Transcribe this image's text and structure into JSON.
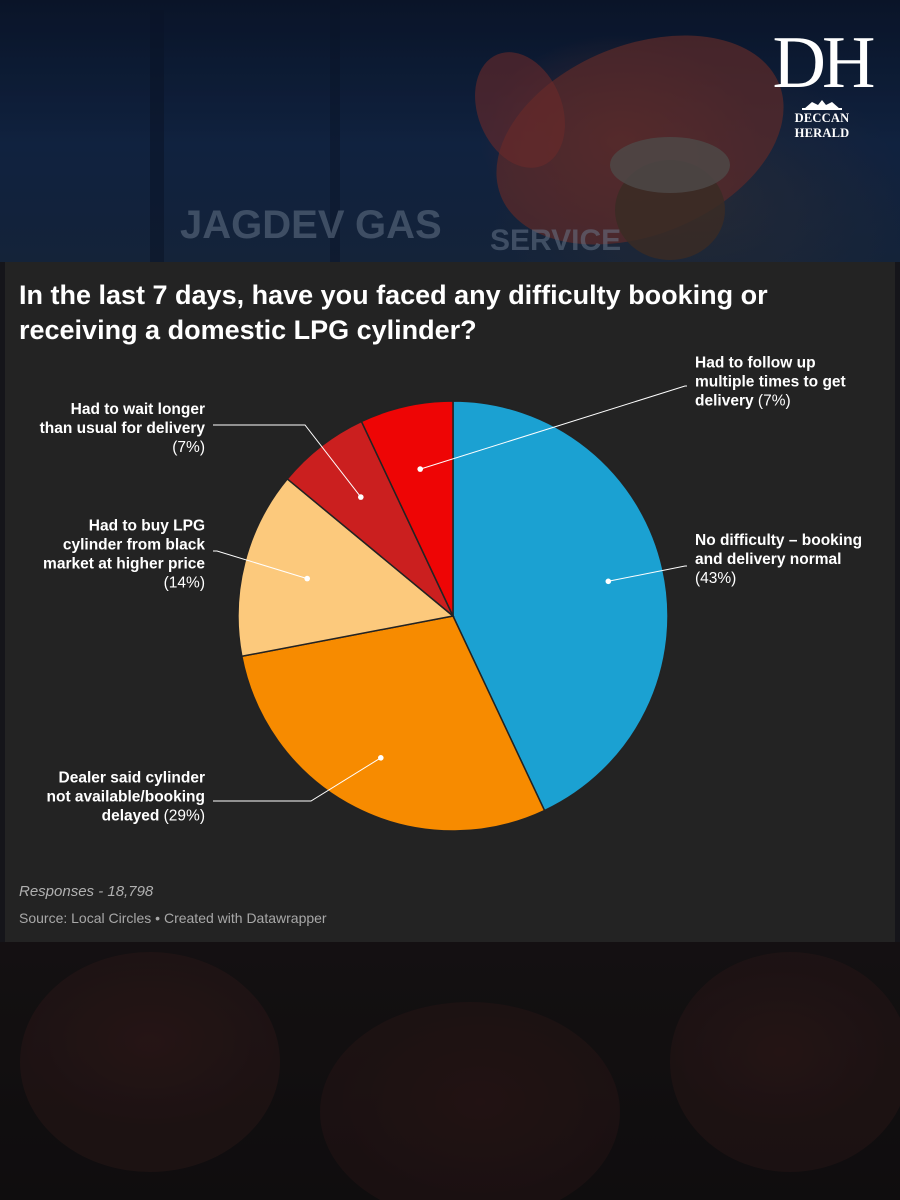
{
  "logo": {
    "mark": "DH",
    "name": "DECCAN HERALD",
    "background_text": [
      "JAGDEV",
      "GAS",
      "SERVICE"
    ]
  },
  "chart_data": {
    "type": "pie",
    "title": "In the last 7 days, have you faced any difficulty booking or receiving a domestic LPG cylinder?",
    "start_angle_deg": 0,
    "direction": "clockwise",
    "slices": [
      {
        "label_lines": [
          "No difficulty – booking",
          "and delivery normal"
        ],
        "pct_text": "(43%)",
        "value": 43,
        "color": "#1ba1d2",
        "side": "right"
      },
      {
        "label_lines": [
          "Dealer said cylinder",
          "not available/booking",
          "delayed"
        ],
        "pct_text": "(29%)",
        "value": 29,
        "color": "#f78b00",
        "side": "left"
      },
      {
        "label_lines": [
          "Had to buy LPG",
          "cylinder from black",
          "market at higher price"
        ],
        "pct_text": "(14%)",
        "value": 14,
        "color": "#fcc97c",
        "side": "left"
      },
      {
        "label_lines": [
          "Had to wait longer",
          "than usual for delivery"
        ],
        "pct_text": "(7%)",
        "value": 7,
        "color": "#cb1f1f",
        "side": "left"
      },
      {
        "label_lines": [
          "Had to follow up",
          "multiple times to get",
          "delivery"
        ],
        "pct_text": "(7%)",
        "value": 7,
        "color": "#ee0505",
        "side": "right"
      }
    ],
    "responses": "Responses - 18,798",
    "source": "Source: Local Circles • Created with Datawrapper"
  }
}
